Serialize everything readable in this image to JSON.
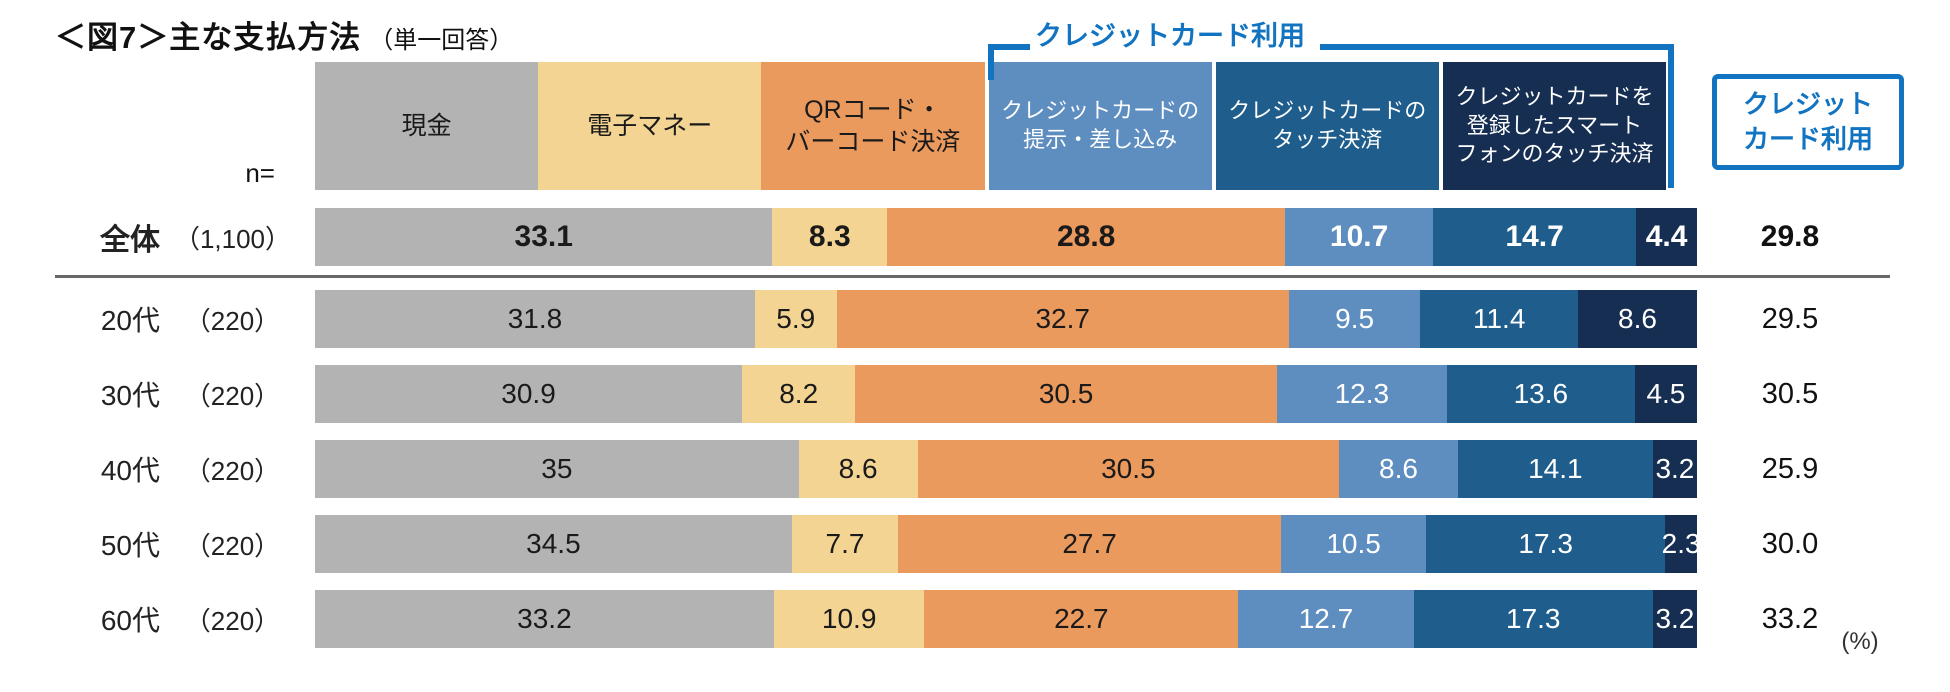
{
  "title": {
    "main": "＜図7＞主な支払方法",
    "sub": "（単一回答）"
  },
  "annotations": {
    "bracket_label": "クレジットカード利用",
    "summary_box_line1": "クレジット",
    "summary_box_line2": "カード利用",
    "n_label": "n=",
    "unit_label": "(%)"
  },
  "colors": {
    "accent_blue": "#1273c0",
    "divider_gray": "#686868",
    "cash": "#b3b3b3",
    "e_money": "#f3d492",
    "qr_barcode": "#eb9a5d",
    "credit_insert": "#5e8dc0",
    "credit_touch": "#1f5d8c",
    "smartphone_touch": "#152e52"
  },
  "chart_data": {
    "type": "bar",
    "variant": "horizontal-stacked-100percent",
    "title": "＜図7＞主な支払方法（単一回答）",
    "unit": "%",
    "xlim": [
      0,
      100
    ],
    "grid": false,
    "legend_position": "top",
    "categories": [
      {
        "key": "cash",
        "label": "現金",
        "lines": [
          "現金"
        ],
        "color": "#b3b3b3",
        "text_color": "#1a1a1a"
      },
      {
        "key": "e-money",
        "label": "電子マネー",
        "lines": [
          "電子マネー"
        ],
        "color": "#f3d492",
        "text_color": "#1a1a1a"
      },
      {
        "key": "qr-barcode",
        "label": "QRコード・バーコード決済",
        "lines": [
          "QRコード・",
          "バーコード決済"
        ],
        "color": "#eb9a5d",
        "text_color": "#1a1a1a"
      },
      {
        "key": "credit-card-insert",
        "label": "クレジットカードの提示・差し込み",
        "lines": [
          "クレジットカードの",
          "提示・差し込み"
        ],
        "color": "#5e8dc0",
        "text_color": "#ffffff"
      },
      {
        "key": "credit-card-touch",
        "label": "クレジットカードのタッチ決済",
        "lines": [
          "クレジットカードの",
          "タッチ決済"
        ],
        "color": "#1f5d8c",
        "text_color": "#ffffff"
      },
      {
        "key": "smartphone-touch",
        "label": "クレジットカードを登録したスマートフォンのタッチ決済",
        "lines": [
          "クレジットカードを",
          "登録したスマート",
          "フォンのタッチ決済"
        ],
        "color": "#152e52",
        "text_color": "#ffffff"
      }
    ],
    "credit_card_group_categories": [
      "credit-card-insert",
      "credit-card-touch",
      "smartphone-touch"
    ],
    "rows": [
      {
        "label": "全体",
        "n": "（1,100）",
        "values": [
          "33.1",
          "8.3",
          "28.8",
          "10.7",
          "14.7",
          "4.4"
        ],
        "credit_total": "29.8",
        "emphasis": true
      },
      {
        "label": "20代",
        "n": "（220）",
        "values": [
          "31.8",
          "5.9",
          "32.7",
          "9.5",
          "11.4",
          "8.6"
        ],
        "credit_total": "29.5",
        "emphasis": false
      },
      {
        "label": "30代",
        "n": "（220）",
        "values": [
          "30.9",
          "8.2",
          "30.5",
          "12.3",
          "13.6",
          "4.5"
        ],
        "credit_total": "30.5",
        "emphasis": false
      },
      {
        "label": "40代",
        "n": "（220）",
        "values": [
          "35",
          "8.6",
          "30.5",
          "8.6",
          "14.1",
          "3.2"
        ],
        "credit_total": "25.9",
        "emphasis": false
      },
      {
        "label": "50代",
        "n": "（220）",
        "values": [
          "34.5",
          "7.7",
          "27.7",
          "10.5",
          "17.3",
          "2.3"
        ],
        "credit_total": "30.0",
        "emphasis": false
      },
      {
        "label": "60代",
        "n": "（220）",
        "values": [
          "33.2",
          "10.9",
          "22.7",
          "12.7",
          "17.3",
          "3.2"
        ],
        "credit_total": "33.2",
        "emphasis": false
      }
    ]
  }
}
